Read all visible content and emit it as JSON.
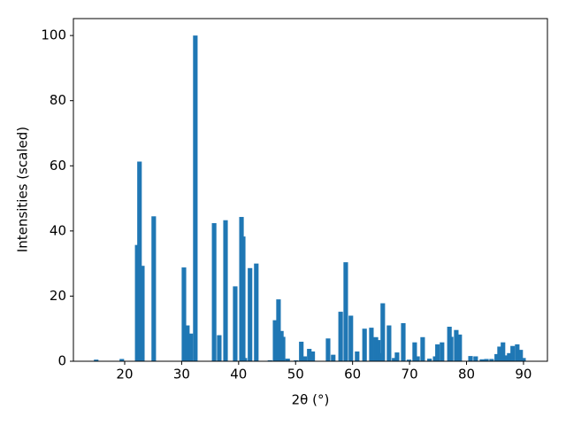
{
  "chart_data": {
    "type": "bar",
    "x_label": "2θ (°)",
    "y_label": "Intensities (scaled)",
    "color": "#1f77b4",
    "x": [
      15.0,
      19.5,
      22.2,
      22.6,
      23.1,
      25.1,
      30.4,
      31.0,
      31.6,
      32.4,
      35.7,
      36.6,
      37.7,
      39.4,
      40.5,
      40.8,
      41.1,
      42.0,
      43.1,
      45.5,
      46.4,
      47.0,
      47.5,
      47.8,
      48.6,
      50.1,
      51.0,
      51.6,
      52.4,
      53.0,
      55.7,
      56.6,
      57.9,
      58.8,
      59.7,
      60.8,
      62.1,
      63.3,
      64.1,
      64.5,
      65.1,
      65.3,
      66.4,
      67.3,
      67.8,
      68.9,
      69.9,
      70.9,
      71.4,
      72.3,
      73.5,
      74.5,
      74.9,
      75.7,
      77.0,
      77.3,
      78.2,
      78.8,
      80.7,
      81.6,
      82.7,
      83.5,
      84.4,
      85.3,
      85.8,
      86.4,
      87.0,
      87.5,
      88.1,
      88.9,
      89.5,
      90.0
    ],
    "values": [
      0.5,
      0.7,
      35.7,
      61.3,
      29.3,
      44.5,
      28.8,
      11,
      8.5,
      100,
      42.4,
      8,
      43.3,
      23,
      44.3,
      38.3,
      1,
      28.6,
      30,
      0.3,
      12.6,
      19,
      9.3,
      7.5,
      0.8,
      0.3,
      6,
      1.5,
      3.8,
      3,
      7,
      2,
      15.2,
      30.4,
      14,
      3,
      10,
      10.3,
      7.4,
      6.5,
      2.5,
      17.8,
      11,
      1,
      2.7,
      11.7,
      0.5,
      5.8,
      1.5,
      7.4,
      0.8,
      1.5,
      5.2,
      5.8,
      10.6,
      7.5,
      9.6,
      8.2,
      1.6,
      1.5,
      0.6,
      0.7,
      0.7,
      2.2,
      4.5,
      5.8,
      1.8,
      2.5,
      4.7,
      5.2,
      3.5,
      1
    ],
    "xlim": [
      11,
      94.2
    ],
    "xticks": [
      20,
      30,
      40,
      50,
      60,
      70,
      80,
      90
    ],
    "ylim": [
      0,
      105.2
    ],
    "yticks": [
      0,
      20,
      40,
      60,
      80,
      100
    ]
  }
}
